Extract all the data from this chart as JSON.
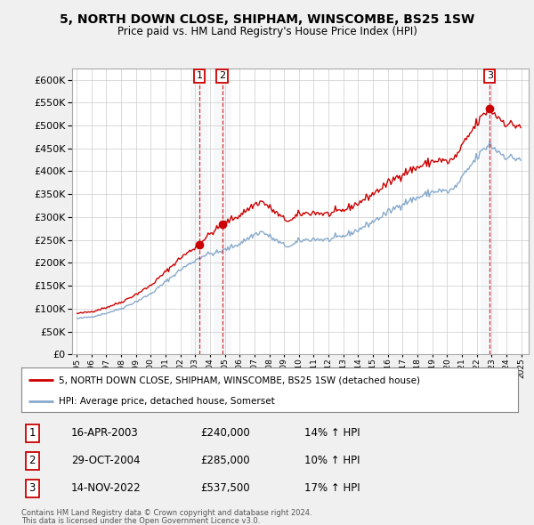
{
  "title": "5, NORTH DOWN CLOSE, SHIPHAM, WINSCOMBE, BS25 1SW",
  "subtitle": "Price paid vs. HM Land Registry's House Price Index (HPI)",
  "ylim": [
    0,
    620000
  ],
  "yticks": [
    0,
    50000,
    100000,
    150000,
    200000,
    250000,
    300000,
    350000,
    400000,
    450000,
    500000,
    550000,
    600000
  ],
  "xlim_start": 1994.7,
  "xlim_end": 2025.5,
  "sale_color": "#cc0000",
  "hpi_color": "#88aacc",
  "hpi_fill_color": "#ddeeff",
  "legend_sale_label": "5, NORTH DOWN CLOSE, SHIPHAM, WINSCOMBE, BS25 1SW (detached house)",
  "legend_hpi_label": "HPI: Average price, detached house, Somerset",
  "transactions": [
    {
      "num": 1,
      "date": "16-APR-2003",
      "price": 240000,
      "pct": "14%",
      "year": 2003.29
    },
    {
      "num": 2,
      "date": "29-OCT-2004",
      "price": 285000,
      "pct": "10%",
      "year": 2004.83
    },
    {
      "num": 3,
      "date": "14-NOV-2022",
      "price": 537500,
      "pct": "17%",
      "year": 2022.87
    }
  ],
  "footnote1": "Contains HM Land Registry data © Crown copyright and database right 2024.",
  "footnote2": "This data is licensed under the Open Government Licence v3.0.",
  "background_color": "#f0f0f0",
  "plot_bg_color": "#ffffff",
  "grid_color": "#cccccc"
}
